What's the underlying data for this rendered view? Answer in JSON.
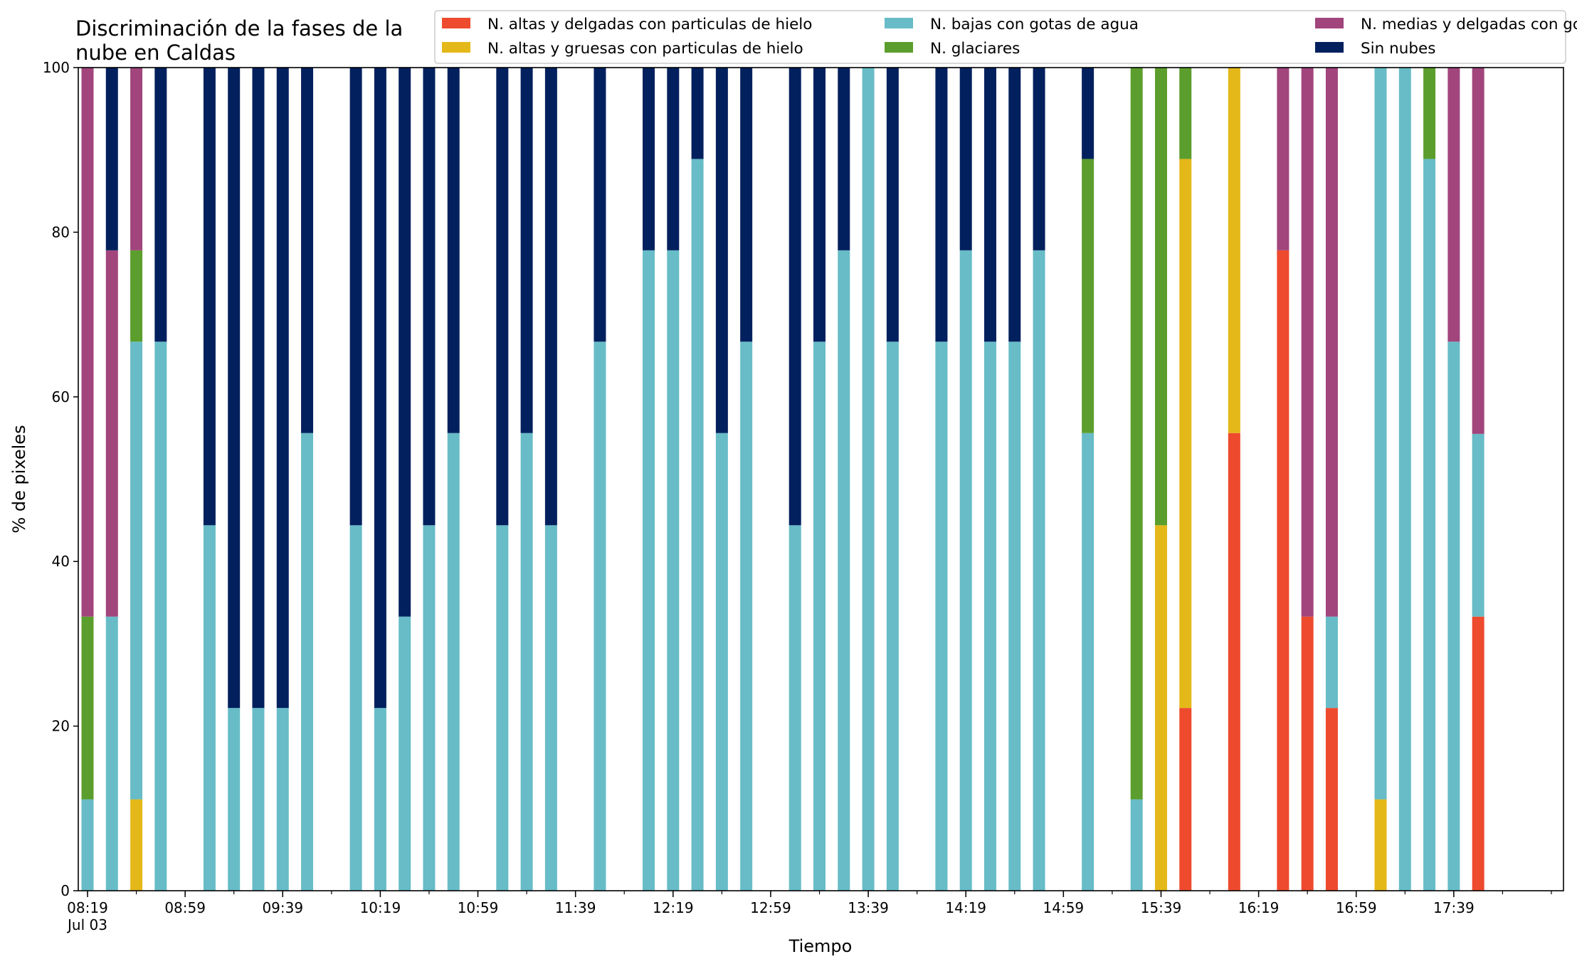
{
  "chart_data": {
    "type": "bar",
    "stacked": true,
    "title": "Discriminación de la fases de la\nnube en Caldas",
    "xlabel": "Tiempo",
    "ylabel": "% de pixeles",
    "ylim": [
      0,
      100
    ],
    "yticks": [
      "0",
      "20",
      "40",
      "60",
      "80",
      "100"
    ],
    "xtick_labels": [
      "08:19",
      "08:59",
      "09:39",
      "10:19",
      "10:59",
      "11:39",
      "12:19",
      "12:59",
      "13:39",
      "14:19",
      "14:59",
      "15:39",
      "16:19",
      "16:59",
      "17:39"
    ],
    "xtick_date": "Jul 03",
    "x_start": "08:19",
    "x_end": "18:19",
    "interval_minutes": 10,
    "grid": false,
    "legend_placement": "top-right",
    "legend_columns": 3,
    "series": [
      {
        "name": "N. altas y delgadas con particulas de hielo",
        "color": "#ee4a2e"
      },
      {
        "name": "N. altas y gruesas con particulas de hielo",
        "color": "#e5b81a"
      },
      {
        "name": "N. bajas con gotas de agua",
        "color": "#67bcc7"
      },
      {
        "name": "N. glaciares",
        "color": "#5c9e2d"
      },
      {
        "name": "N. medias y delgadas con gotas de agua",
        "color": "#a1457c"
      },
      {
        "name": "Sin nubes",
        "color": "#03205e"
      }
    ],
    "stack_order": [
      "N. altas y delgadas con particulas de hielo",
      "N. altas y gruesas con particulas de hielo",
      "N. bajas con gotas de agua",
      "N. glaciares",
      "N. medias y delgadas con gotas de agua",
      "Sin nubes"
    ],
    "bars": [
      {
        "time": "08:19",
        "values": [
          0,
          0,
          11.1,
          22.2,
          66.7,
          0
        ]
      },
      {
        "time": "08:29",
        "values": [
          0,
          0,
          33.3,
          0,
          44.5,
          22.2
        ]
      },
      {
        "time": "08:39",
        "values": [
          0,
          11.1,
          55.6,
          11.1,
          22.2,
          0
        ]
      },
      {
        "time": "08:49",
        "values": [
          0,
          0,
          66.7,
          0,
          0,
          33.3
        ]
      },
      {
        "time": "09:09",
        "values": [
          0,
          0,
          44.4,
          0,
          0,
          55.6
        ]
      },
      {
        "time": "09:19",
        "values": [
          0,
          0,
          22.2,
          0,
          0,
          77.8
        ]
      },
      {
        "time": "09:29",
        "values": [
          0,
          0,
          22.2,
          0,
          0,
          77.8
        ]
      },
      {
        "time": "09:39",
        "values": [
          0,
          0,
          22.2,
          0,
          0,
          77.8
        ]
      },
      {
        "time": "09:49",
        "values": [
          0,
          0,
          55.6,
          0,
          0,
          44.4
        ]
      },
      {
        "time": "10:09",
        "values": [
          0,
          0,
          44.4,
          0,
          0,
          55.6
        ]
      },
      {
        "time": "10:19",
        "values": [
          0,
          0,
          22.2,
          0,
          0,
          77.8
        ]
      },
      {
        "time": "10:29",
        "values": [
          0,
          0,
          33.3,
          0,
          0,
          66.7
        ]
      },
      {
        "time": "10:39",
        "values": [
          0,
          0,
          44.4,
          0,
          0,
          55.6
        ]
      },
      {
        "time": "10:49",
        "values": [
          0,
          0,
          55.6,
          0,
          0,
          44.4
        ]
      },
      {
        "time": "11:09",
        "values": [
          0,
          0,
          44.4,
          0,
          0,
          55.6
        ]
      },
      {
        "time": "11:19",
        "values": [
          0,
          0,
          55.6,
          0,
          0,
          44.4
        ]
      },
      {
        "time": "11:29",
        "values": [
          0,
          0,
          44.4,
          0,
          0,
          55.6
        ]
      },
      {
        "time": "11:49",
        "values": [
          0,
          0,
          66.7,
          0,
          0,
          33.3
        ]
      },
      {
        "time": "12:09",
        "values": [
          0,
          0,
          77.8,
          0,
          0,
          22.2
        ]
      },
      {
        "time": "12:19",
        "values": [
          0,
          0,
          77.8,
          0,
          0,
          22.2
        ]
      },
      {
        "time": "12:29",
        "values": [
          0,
          0,
          88.9,
          0,
          0,
          11.1
        ]
      },
      {
        "time": "12:39",
        "values": [
          0,
          0,
          55.6,
          0,
          0,
          44.4
        ]
      },
      {
        "time": "12:49",
        "values": [
          0,
          0,
          66.7,
          0,
          0,
          33.3
        ]
      },
      {
        "time": "13:09",
        "values": [
          0,
          0,
          44.4,
          0,
          0,
          55.6
        ]
      },
      {
        "time": "13:19",
        "values": [
          0,
          0,
          66.7,
          0,
          0,
          33.3
        ]
      },
      {
        "time": "13:29",
        "values": [
          0,
          0,
          77.8,
          0,
          0,
          22.2
        ]
      },
      {
        "time": "13:39",
        "values": [
          0,
          0,
          100,
          0,
          0,
          0
        ]
      },
      {
        "time": "13:49",
        "values": [
          0,
          0,
          66.7,
          0,
          0,
          33.3
        ]
      },
      {
        "time": "14:09",
        "values": [
          0,
          0,
          66.7,
          0,
          0,
          33.3
        ]
      },
      {
        "time": "14:19",
        "values": [
          0,
          0,
          77.8,
          0,
          0,
          22.2
        ]
      },
      {
        "time": "14:29",
        "values": [
          0,
          0,
          66.7,
          0,
          0,
          33.3
        ]
      },
      {
        "time": "14:39",
        "values": [
          0,
          0,
          66.7,
          0,
          0,
          33.3
        ]
      },
      {
        "time": "14:49",
        "values": [
          0,
          0,
          77.8,
          0,
          0,
          22.2
        ]
      },
      {
        "time": "15:09",
        "values": [
          0,
          0,
          55.6,
          33.3,
          0,
          11.1
        ]
      },
      {
        "time": "15:29",
        "values": [
          0,
          0,
          11.1,
          88.9,
          0,
          0
        ]
      },
      {
        "time": "15:39",
        "values": [
          0,
          44.4,
          0,
          55.6,
          0,
          0
        ]
      },
      {
        "time": "15:49",
        "values": [
          22.2,
          66.7,
          0,
          11.1,
          0,
          0
        ]
      },
      {
        "time": "16:09",
        "values": [
          55.6,
          44.4,
          0,
          0,
          0,
          0
        ]
      },
      {
        "time": "16:29",
        "values": [
          77.8,
          0,
          0,
          0,
          22.2,
          0
        ]
      },
      {
        "time": "16:39",
        "values": [
          33.3,
          0,
          0,
          0,
          66.7,
          0
        ]
      },
      {
        "time": "16:49",
        "values": [
          22.2,
          0,
          11.1,
          0,
          66.7,
          0
        ]
      },
      {
        "time": "17:09",
        "values": [
          0,
          11.1,
          88.9,
          0,
          0,
          0
        ]
      },
      {
        "time": "17:19",
        "values": [
          0,
          0,
          100,
          0,
          0,
          0
        ]
      },
      {
        "time": "17:29",
        "values": [
          0,
          0,
          88.9,
          11.1,
          0,
          0
        ]
      },
      {
        "time": "17:39",
        "values": [
          0,
          0,
          66.7,
          0,
          33.3,
          0
        ]
      },
      {
        "time": "17:49",
        "values": [
          33.3,
          0,
          22.2,
          0,
          44.5,
          0
        ]
      }
    ]
  }
}
